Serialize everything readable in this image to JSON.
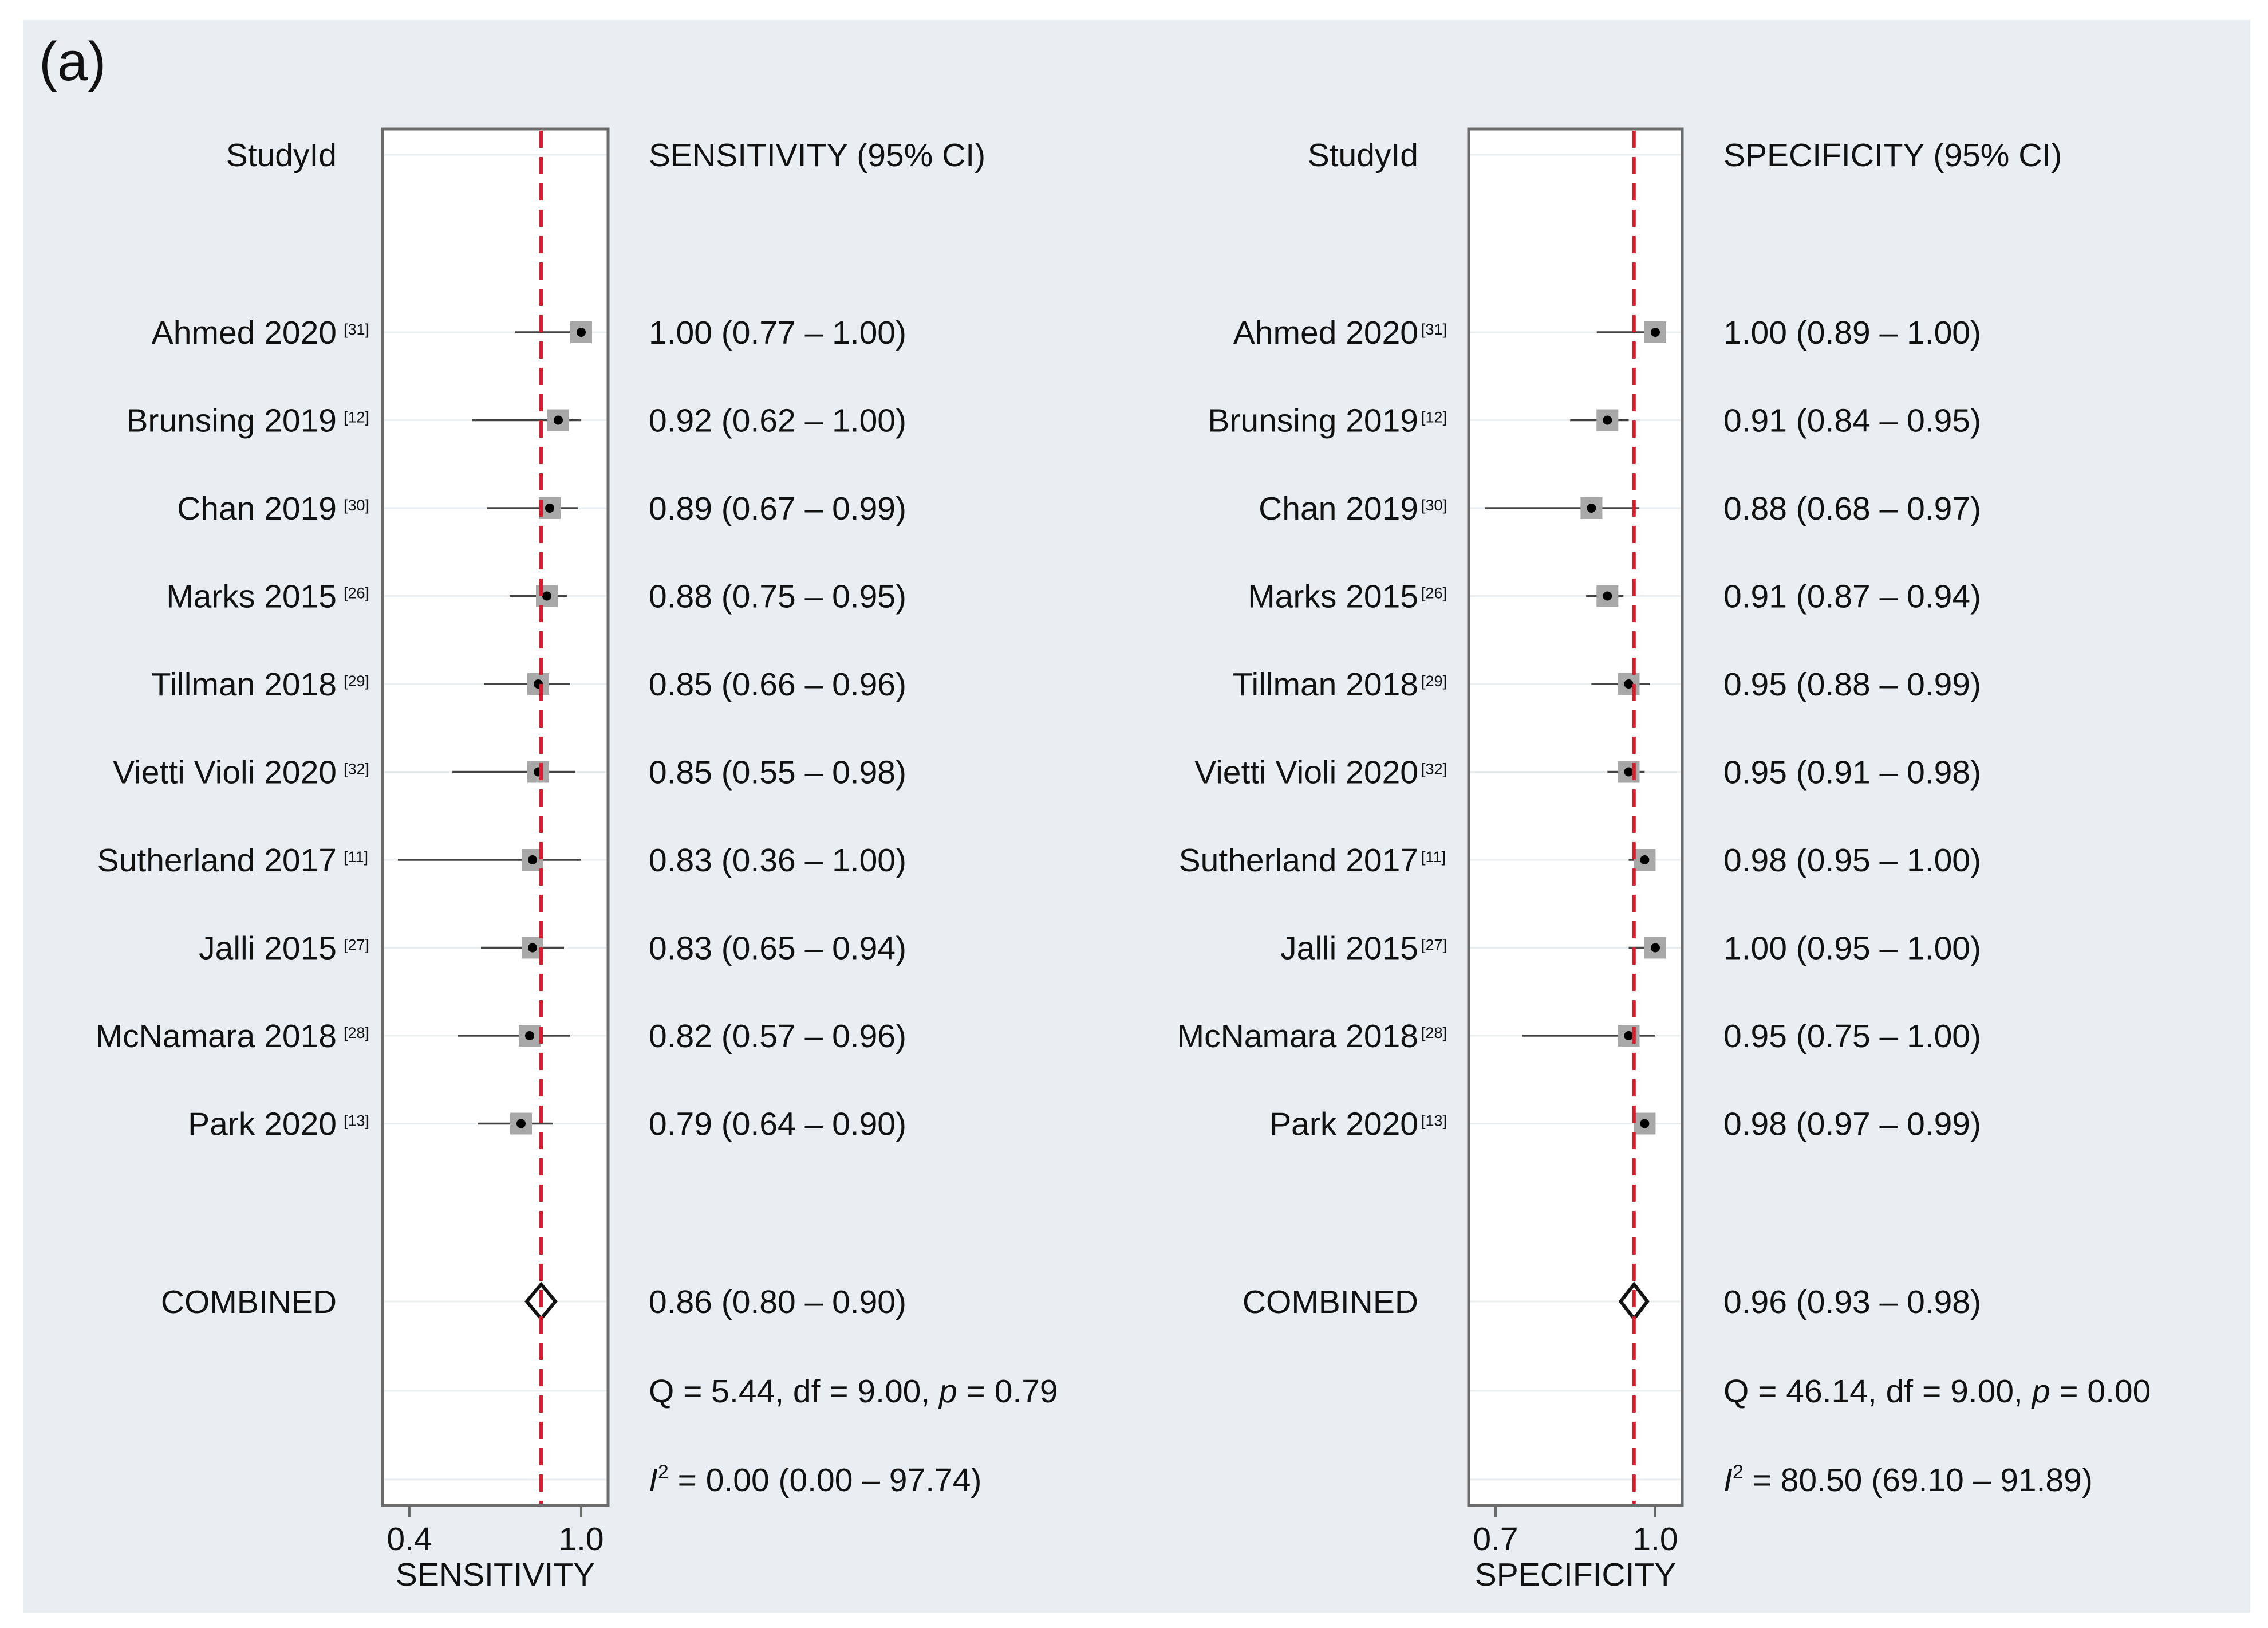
{
  "panel_label": "(a)",
  "chart_data": [
    {
      "type": "forest",
      "column_header": "StudyId",
      "estimate_header": "SENSITIVITY (95% CI)",
      "xlabel": "SENSITIVITY",
      "xlim": [
        0.4,
        1.0
      ],
      "xticks": [
        "0.4",
        "1.0"
      ],
      "reference_line": 0.86,
      "studies": [
        {
          "name": "Ahmed 2020",
          "ref": "[31]",
          "est": 1.0,
          "lo": 0.77,
          "hi": 1.0,
          "label": "1.00 (0.77 – 1.00)"
        },
        {
          "name": "Brunsing 2019",
          "ref": "[12]",
          "est": 0.92,
          "lo": 0.62,
          "hi": 1.0,
          "label": "0.92 (0.62 – 1.00)"
        },
        {
          "name": "Chan 2019",
          "ref": "[30]",
          "est": 0.89,
          "lo": 0.67,
          "hi": 0.99,
          "label": "0.89 (0.67 – 0.99)"
        },
        {
          "name": "Marks 2015",
          "ref": "[26]",
          "est": 0.88,
          "lo": 0.75,
          "hi": 0.95,
          "label": "0.88 (0.75 – 0.95)"
        },
        {
          "name": "Tillman 2018",
          "ref": "[29]",
          "est": 0.85,
          "lo": 0.66,
          "hi": 0.96,
          "label": "0.85 (0.66 – 0.96)"
        },
        {
          "name": "Vietti Violi 2020",
          "ref": "[32]",
          "est": 0.85,
          "lo": 0.55,
          "hi": 0.98,
          "label": "0.85 (0.55 – 0.98)"
        },
        {
          "name": "Sutherland 2017",
          "ref": "[11]",
          "est": 0.83,
          "lo": 0.36,
          "hi": 1.0,
          "label": "0.83 (0.36 – 1.00)"
        },
        {
          "name": "Jalli 2015",
          "ref": "[27]",
          "est": 0.83,
          "lo": 0.65,
          "hi": 0.94,
          "label": "0.83 (0.65 – 0.94)"
        },
        {
          "name": "McNamara 2018",
          "ref": "[28]",
          "est": 0.82,
          "lo": 0.57,
          "hi": 0.96,
          "label": "0.82 (0.57 – 0.96)"
        },
        {
          "name": "Park 2020",
          "ref": "[13]",
          "est": 0.79,
          "lo": 0.64,
          "hi": 0.9,
          "label": "0.79 (0.64 – 0.90)"
        }
      ],
      "combined": {
        "name": "COMBINED",
        "est": 0.86,
        "lo": 0.8,
        "hi": 0.9,
        "label": "0.86 (0.80 – 0.90)"
      },
      "q_stat": {
        "prefix": "Q = ",
        "q": "5.44",
        "df_text": ", df = 9.00, ",
        "p_symbol": "p",
        "p_text": " =  0.79"
      },
      "i2_stat": {
        "symbol": "I",
        "sup": "2",
        "text": " =   0.00 (0.00 – 97.74)"
      }
    },
    {
      "type": "forest",
      "column_header": "StudyId",
      "estimate_header": "SPECIFICITY (95% CI)",
      "xlabel": "SPECIFICITY",
      "xlim": [
        0.7,
        1.0
      ],
      "xticks": [
        "0.7",
        "1.0"
      ],
      "reference_line": 0.96,
      "studies": [
        {
          "name": "Ahmed 2020",
          "ref": "[31]",
          "est": 1.0,
          "lo": 0.89,
          "hi": 1.0,
          "label": "1.00 (0.89 – 1.00)"
        },
        {
          "name": "Brunsing 2019",
          "ref": "[12]",
          "est": 0.91,
          "lo": 0.84,
          "hi": 0.95,
          "label": "0.91 (0.84 – 0.95)"
        },
        {
          "name": "Chan 2019",
          "ref": "[30]",
          "est": 0.88,
          "lo": 0.68,
          "hi": 0.97,
          "label": "0.88 (0.68 – 0.97)"
        },
        {
          "name": "Marks 2015",
          "ref": "[26]",
          "est": 0.91,
          "lo": 0.87,
          "hi": 0.94,
          "label": "0.91 (0.87 – 0.94)"
        },
        {
          "name": "Tillman 2018",
          "ref": "[29]",
          "est": 0.95,
          "lo": 0.88,
          "hi": 0.99,
          "label": "0.95 (0.88 – 0.99)"
        },
        {
          "name": "Vietti Violi 2020",
          "ref": "[32]",
          "est": 0.95,
          "lo": 0.91,
          "hi": 0.98,
          "label": "0.95 (0.91 – 0.98)"
        },
        {
          "name": "Sutherland 2017",
          "ref": "[11]",
          "est": 0.98,
          "lo": 0.95,
          "hi": 1.0,
          "label": "0.98 (0.95 – 1.00)"
        },
        {
          "name": "Jalli 2015",
          "ref": "[27]",
          "est": 1.0,
          "lo": 0.95,
          "hi": 1.0,
          "label": "1.00 (0.95 – 1.00)"
        },
        {
          "name": "McNamara 2018",
          "ref": "[28]",
          "est": 0.95,
          "lo": 0.75,
          "hi": 1.0,
          "label": "0.95 (0.75 – 1.00)"
        },
        {
          "name": "Park 2020",
          "ref": "[13]",
          "est": 0.98,
          "lo": 0.97,
          "hi": 0.99,
          "label": "0.98 (0.97 – 0.99)"
        }
      ],
      "combined": {
        "name": "COMBINED",
        "est": 0.96,
        "lo": 0.93,
        "hi": 0.98,
        "label": "0.96 (0.93 – 0.98)"
      },
      "q_stat": {
        "prefix": "Q = ",
        "q": "46.14",
        "df_text": ", df = 9.00, ",
        "p_symbol": "p",
        "p_text": " =  0.00"
      },
      "i2_stat": {
        "symbol": "I",
        "sup": "2",
        "text": " =  80.50 (69.10 – 91.89)"
      }
    }
  ]
}
